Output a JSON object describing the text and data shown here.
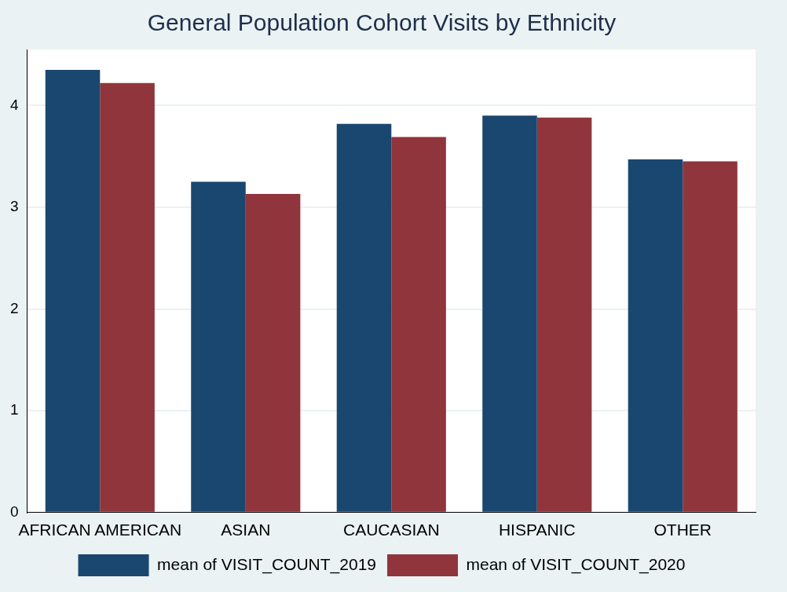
{
  "chart_data": {
    "type": "bar",
    "title": "General Population Cohort Visits by Ethnicity",
    "categories": [
      "AFRICAN AMERICAN",
      "ASIAN",
      "CAUCASIAN",
      "HISPANIC",
      "OTHER"
    ],
    "series": [
      {
        "name": "mean of VISIT_COUNT_2019",
        "color": "#1a476f",
        "values": [
          4.35,
          3.25,
          3.82,
          3.9,
          3.47
        ]
      },
      {
        "name": "mean of VISIT_COUNT_2020",
        "color": "#90353b",
        "values": [
          4.22,
          3.13,
          3.69,
          3.88,
          3.45
        ]
      }
    ],
    "ylim": [
      0,
      4.55
    ],
    "yticks": [
      0,
      1,
      2,
      3,
      4
    ],
    "grid": "y",
    "legend": "bottom"
  }
}
